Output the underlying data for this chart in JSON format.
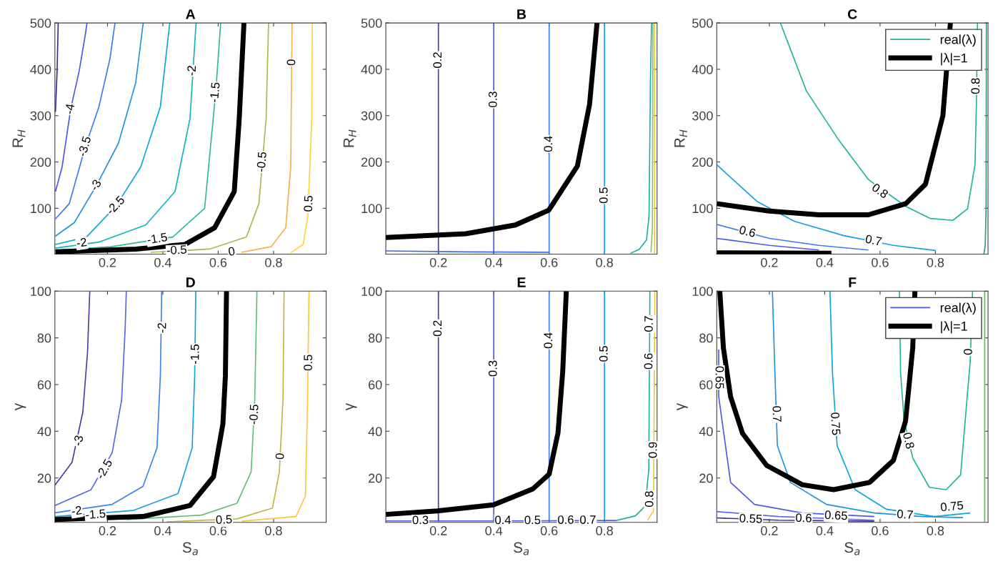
{
  "chart_data": [
    {
      "type": "line",
      "title": "A",
      "ylabel": "R$_{H}$",
      "xlim": [
        0.01,
        0.99
      ],
      "ylim": [
        1,
        500
      ],
      "xticks": [
        0.2,
        0.4,
        0.6,
        0.8
      ],
      "yticks": [
        100,
        200,
        300,
        400,
        500
      ],
      "tick_labels": "xy",
      "grid": false,
      "legend": false,
      "series": [
        {
          "color": "#3b2a98",
          "x": [
            0.012,
            0.018,
            0.022
          ],
          "values": [
            308,
            397,
            500
          ]
        },
        {
          "color": "#4c53e8",
          "x": [
            0.012,
            0.036,
            0.067,
            0.098,
            0.12,
            0.126
          ],
          "values": [
            136,
            189,
            314,
            397,
            475,
            500
          ]
        },
        {
          "color": "#3c7af0",
          "x": [
            0.012,
            0.062,
            0.12,
            0.169,
            0.209,
            0.227
          ],
          "values": [
            77,
            110,
            233,
            319,
            423,
            500
          ]
        },
        {
          "color": "#1e94e0",
          "x": [
            0.012,
            0.08,
            0.16,
            0.24,
            0.302,
            0.329
          ],
          "values": [
            40,
            69,
            149,
            241,
            371,
            500
          ]
        },
        {
          "color": "#0aa8d6",
          "x": [
            0.012,
            0.124,
            0.231,
            0.32,
            0.391,
            0.425
          ],
          "values": [
            22,
            38,
            105,
            189,
            319,
            500
          ]
        },
        {
          "color": "#10b4c0",
          "x": [
            0.012,
            0.169,
            0.338,
            0.444,
            0.498,
            0.52
          ],
          "values": [
            14,
            27,
            64,
            136,
            293,
            500
          ]
        },
        {
          "color": "#2fb89a",
          "x": [
            0.012,
            0.213,
            0.436,
            0.551,
            0.591,
            0.609
          ],
          "values": [
            9,
            17,
            38,
            100,
            350,
            500
          ]
        },
        {
          "color": "#a6b84e",
          "x": [
            0.356,
            0.569,
            0.702,
            0.747,
            0.773,
            0.782
          ],
          "values": [
            5,
            12,
            38,
            110,
            293,
            500
          ]
        },
        {
          "color": "#f5b04c",
          "x": [
            0.684,
            0.791,
            0.844,
            0.862,
            0.867
          ],
          "values": [
            5,
            17,
            58,
            189,
            500
          ]
        },
        {
          "color": "#fad43a",
          "x": [
            0.862,
            0.907,
            0.924,
            0.938,
            0.94
          ],
          "values": [
            4,
            22,
            84,
            293,
            500
          ]
        },
        {
          "color": "#000000",
          "x": [
            0.012,
            0.302,
            0.48,
            0.587,
            0.658,
            0.676,
            0.693
          ],
          "values": [
            6,
            12,
            22,
            58,
            136,
            293,
            500
          ]
        }
      ],
      "annotations": [
        {
          "text": "-4",
          "x": 0.067,
          "y": 314
        },
        {
          "text": "-3.5",
          "x": 0.12,
          "y": 233
        },
        {
          "text": "-3",
          "x": 0.16,
          "y": 149
        },
        {
          "text": "-2.5",
          "x": 0.231,
          "y": 105
        },
        {
          "text": "-2",
          "x": 0.507,
          "y": 397
        },
        {
          "text": "-1.5",
          "x": 0.591,
          "y": 350
        },
        {
          "text": "-0.5",
          "x": 0.76,
          "y": 200
        },
        {
          "text": "0",
          "x": 0.867,
          "y": 415
        },
        {
          "text": "0.5",
          "x": 0.929,
          "y": 110
        },
        {
          "text": "-2",
          "x": 0.107,
          "y": 24
        },
        {
          "text": "-1.5",
          "x": 0.38,
          "y": 33
        },
        {
          "text": "-0.5",
          "x": 0.45,
          "y": 8
        },
        {
          "text": "0",
          "x": 0.649,
          "y": 5
        }
      ]
    },
    {
      "type": "line",
      "title": "B",
      "ylabel": "R$_{H}$",
      "xlim": [
        0.01,
        0.99
      ],
      "ylim": [
        1,
        500
      ],
      "xticks": [
        0.2,
        0.4,
        0.6,
        0.8
      ],
      "yticks": [
        100,
        200,
        300,
        400,
        500
      ],
      "grid": false,
      "legend": false,
      "series": [
        {
          "color": "#4b3ca5",
          "x": [
            0.2,
            0.2
          ],
          "values": [
            1,
            500
          ]
        },
        {
          "color": "#4d58e8",
          "x": [
            0.4,
            0.4
          ],
          "values": [
            1,
            500
          ]
        },
        {
          "color": "#3a7cf0",
          "x": [
            0.6,
            0.6
          ],
          "values": [
            1,
            500
          ]
        },
        {
          "color": "#14a2e0",
          "x": [
            0.8,
            0.8
          ],
          "values": [
            1,
            500
          ]
        },
        {
          "color": "#3a6ae8",
          "x": [
            0.01,
            0.3,
            0.6
          ],
          "values": [
            8,
            6,
            5
          ]
        },
        {
          "color": "#1bb0a8",
          "x": [
            0.97,
            0.966,
            0.961,
            0.952,
            0.925,
            0.894
          ],
          "values": [
            500,
            378,
            85,
            32,
            11,
            3
          ]
        },
        {
          "color": "#86c46a",
          "x": [
            0.975,
            0.973,
            0.968
          ],
          "values": [
            500,
            58,
            5
          ]
        },
        {
          "color": "#f2c53a",
          "x": [
            0.981,
            0.981
          ],
          "values": [
            500,
            3
          ]
        },
        {
          "color": "#000000",
          "x": [
            0.01,
            0.299,
            0.478,
            0.599,
            0.702,
            0.746,
            0.773
          ],
          "values": [
            37,
            45,
            64,
            96,
            191,
            324,
            500
          ]
        }
      ],
      "annotations": [
        {
          "text": "0.2",
          "x": 0.2,
          "y": 420
        },
        {
          "text": "0.3",
          "x": 0.4,
          "y": 335
        },
        {
          "text": "0.4",
          "x": 0.6,
          "y": 239
        },
        {
          "text": "0.5",
          "x": 0.8,
          "y": 128
        }
      ]
    },
    {
      "type": "line",
      "title": "C",
      "ylabel": "R$_{H}$",
      "xlim": [
        0.01,
        0.99
      ],
      "ylim": [
        1,
        500
      ],
      "xticks": [
        0.2,
        0.4,
        0.6,
        0.8
      ],
      "yticks": [
        100,
        200,
        300,
        400,
        500
      ],
      "grid": false,
      "legend": "top right",
      "series": [
        {
          "name": "real(λ)",
          "color": "#1fb59a",
          "x": [
            0.24,
            0.334,
            0.451,
            0.558,
            0.693,
            0.782,
            0.863,
            0.916,
            0.943,
            0.948,
            0.952
          ],
          "values": [
            500,
            353,
            247,
            162,
            104,
            78,
            74,
            99,
            194,
            326,
            500
          ]
        },
        {
          "color": "#14a2e0",
          "x": [
            0.01,
            0.155,
            0.29,
            0.469,
            0.648,
            0.8
          ],
          "values": [
            194,
            115,
            72,
            41,
            20,
            9
          ]
        },
        {
          "color": "#3a7cf0",
          "x": [
            0.01,
            0.2,
            0.379,
            0.558
          ],
          "values": [
            65,
            35,
            20,
            10
          ]
        },
        {
          "color": "#4d58e8",
          "x": [
            0.01,
            0.2,
            0.379
          ],
          "values": [
            35,
            20,
            10
          ]
        },
        {
          "color": "#2a9d7f",
          "x": [
            0.975,
            0.98,
            0.983,
            0.984
          ],
          "values": [
            1,
            20,
            100,
            500
          ]
        },
        {
          "name": "|λ|=1",
          "color": "#000000",
          "x": [
            0.01,
            0.2,
            0.379,
            0.558,
            0.693,
            0.764,
            0.827,
            0.854
          ],
          "values": [
            110,
            94,
            86,
            86,
            110,
            152,
            300,
            500
          ]
        },
        {
          "color": "#000000",
          "x": [
            0.01,
            0.424
          ],
          "values": [
            4,
            3
          ]
        }
      ],
      "annotations": [
        {
          "text": "0.8",
          "x": 0.598,
          "y": 136
        },
        {
          "text": "0.8",
          "x": 0.948,
          "y": 364
        },
        {
          "text": "0.7",
          "x": 0.576,
          "y": 29
        },
        {
          "text": "0.6",
          "x": 0.12,
          "y": 48
        }
      ]
    },
    {
      "type": "line",
      "title": "D",
      "xlabel": "S$_{a}$",
      "ylabel": "γ",
      "xlim": [
        0.01,
        0.99
      ],
      "ylim": [
        1,
        100
      ],
      "xticks": [
        0.2,
        0.4,
        0.6,
        0.8
      ],
      "yticks": [
        20,
        40,
        60,
        80,
        100
      ],
      "grid": false,
      "legend": false,
      "series": [
        {
          "color": "#4b3ca5",
          "x": [
            0.01,
            0.072,
            0.111,
            0.128,
            0.136
          ],
          "values": [
            16.9,
            26.7,
            48.3,
            74,
            100
          ]
        },
        {
          "color": "#5566e0",
          "x": [
            0.01,
            0.14,
            0.217,
            0.251,
            0.264,
            0.268
          ],
          "values": [
            8.2,
            14.9,
            30.8,
            53.4,
            84.3,
            100
          ]
        },
        {
          "color": "#3a82f0",
          "x": [
            0.01,
            0.217,
            0.328,
            0.379,
            0.391,
            0.396
          ],
          "values": [
            5.1,
            8.7,
            16.4,
            32.9,
            63.7,
            100
          ]
        },
        {
          "color": "#14a2e0",
          "x": [
            0.01,
            0.294,
            0.455,
            0.506,
            0.515,
            0.519
          ],
          "values": [
            3.5,
            6.1,
            13.3,
            32.9,
            63.7,
            100
          ]
        },
        {
          "color": "#5ebf78",
          "x": [
            0.268,
            0.54,
            0.668,
            0.719,
            0.732,
            0.74
          ],
          "values": [
            2.2,
            4.1,
            9.2,
            22.6,
            53.4,
            100
          ]
        },
        {
          "color": "#c4b444",
          "x": [
            0.413,
            0.668,
            0.796,
            0.821,
            0.834,
            0.838
          ],
          "values": [
            1.2,
            2.5,
            7.1,
            22.6,
            53.4,
            100
          ]
        },
        {
          "color": "#fcc53c",
          "x": [
            0.685,
            0.881,
            0.915,
            0.923,
            0.928
          ],
          "values": [
            1.5,
            3.5,
            12.3,
            53.4,
            100
          ]
        },
        {
          "color": "#000000",
          "x": [
            0.01,
            0.328,
            0.498,
            0.583,
            0.617,
            0.626,
            0.63
          ],
          "values": [
            2.2,
            3.5,
            8.2,
            20.5,
            43.1,
            63.7,
            100
          ]
        }
      ],
      "annotations": [
        {
          "text": "-3",
          "x": 0.098,
          "y": 35.9
        },
        {
          "text": "-2.5",
          "x": 0.191,
          "y": 23.6
        },
        {
          "text": "-2",
          "x": 0.4,
          "y": 84.3
        },
        {
          "text": "-1.5",
          "x": 0.519,
          "y": 73
        },
        {
          "text": "-0.5",
          "x": 0.732,
          "y": 47.2
        },
        {
          "text": "0",
          "x": 0.826,
          "y": 29.3
        },
        {
          "text": "0.5",
          "x": 0.928,
          "y": 69.4
        },
        {
          "text": "-2",
          "x": 0.089,
          "y": 5.6
        },
        {
          "text": "-1.5",
          "x": 0.157,
          "y": 4.1
        },
        {
          "text": "0.5",
          "x": 0.621,
          "y": 1.8
        }
      ]
    },
    {
      "type": "line",
      "title": "E",
      "xlabel": "S$_{a}$",
      "ylabel": "γ",
      "xlim": [
        0.01,
        0.99
      ],
      "ylim": [
        1,
        100
      ],
      "xticks": [
        0.2,
        0.4,
        0.6,
        0.8
      ],
      "yticks": [
        20,
        40,
        60,
        80,
        100
      ],
      "grid": false,
      "legend": false,
      "series": [
        {
          "color": "#4b3ca5",
          "x": [
            0.2,
            0.2
          ],
          "values": [
            1.5,
            100
          ]
        },
        {
          "color": "#4d58e8",
          "x": [
            0.4,
            0.4
          ],
          "values": [
            1.5,
            100
          ]
        },
        {
          "color": "#3a7cf0",
          "x": [
            0.6,
            0.6
          ],
          "values": [
            1.5,
            100
          ]
        },
        {
          "color": "#14a2e0",
          "x": [
            0.8,
            0.8
          ],
          "values": [
            1.5,
            100
          ]
        },
        {
          "color": "#4d58e8",
          "x": [
            0.01,
            0.4,
            0.843
          ],
          "values": [
            1.6,
            1.6,
            1.8
          ]
        },
        {
          "color": "#1bb0a8",
          "x": [
            0.964,
            0.96,
            0.947,
            0.912,
            0.843
          ],
          "values": [
            100,
            23.6,
            8,
            3.8,
            1.8
          ]
        },
        {
          "color": "#f2c53a",
          "x": [
            0.982,
            0.977,
            0.955
          ],
          "values": [
            100,
            5.9,
            1.8
          ]
        },
        {
          "color": "#000000",
          "x": [
            0.01,
            0.196,
            0.399,
            0.541,
            0.6,
            0.632,
            0.649,
            0.662
          ],
          "values": [
            4.4,
            5.9,
            8.5,
            15.3,
            21.6,
            39.3,
            65.4,
            100
          ]
        }
      ],
      "annotations": [
        {
          "text": "0.2",
          "x": 0.2,
          "y": 84.1
        },
        {
          "text": "0.3",
          "x": 0.4,
          "y": 66.9
        },
        {
          "text": "0.4",
          "x": 0.6,
          "y": 78.9
        },
        {
          "text": "0.5",
          "x": 0.8,
          "y": 73.2
        },
        {
          "text": "0.6",
          "x": 0.962,
          "y": 70
        },
        {
          "text": "0.7",
          "x": 0.963,
          "y": 86
        },
        {
          "text": "0.8",
          "x": 0.965,
          "y": 11
        },
        {
          "text": "0.9",
          "x": 0.978,
          "y": 32
        },
        {
          "text": "0.3",
          "x": 0.135,
          "y": 1.6
        },
        {
          "text": "0.4",
          "x": 0.433,
          "y": 1.6
        },
        {
          "text": "0.5",
          "x": 0.54,
          "y": 1.6
        },
        {
          "text": "0.6",
          "x": 0.66,
          "y": 1.7
        },
        {
          "text": "0.7",
          "x": 0.74,
          "y": 1.7
        }
      ]
    },
    {
      "type": "line",
      "title": "F",
      "xlabel": "S$_{a}$",
      "ylabel": "γ",
      "xlim": [
        0.01,
        0.99
      ],
      "ylim": [
        1,
        100
      ],
      "xticks": [
        0.2,
        0.4,
        0.6,
        0.8
      ],
      "yticks": [
        20,
        40,
        60,
        80,
        100
      ],
      "grid": false,
      "legend": "top right",
      "series": [
        {
          "name": "real(λ)",
          "color": "#4d58e8",
          "x": [
            0.017,
            0.017,
            0.06,
            0.146,
            0.319,
            0.579
          ],
          "values": [
            75,
            54.8,
            18.1,
            8.7,
            5,
            3.5
          ]
        },
        {
          "color": "#3b2a98",
          "x": [
            0.01,
            0.233,
            0.579
          ],
          "values": [
            2.9,
            1.9,
            1.5
          ]
        },
        {
          "color": "#5a6ae8",
          "x": [
            0.01,
            0.233,
            0.579
          ],
          "values": [
            5.6,
            3.5,
            1.9
          ]
        },
        {
          "color": "#1e94e0",
          "x": [
            0.211,
            0.22,
            0.229,
            0.276,
            0.406,
            0.579,
            0.752,
            0.9
          ],
          "values": [
            100,
            65.2,
            33.8,
            18.1,
            8.7,
            5,
            3.5,
            3
          ]
        },
        {
          "color": "#0aa8d6",
          "x": [
            0.419,
            0.428,
            0.445,
            0.51,
            0.623,
            0.796,
            0.926
          ],
          "values": [
            100,
            65.2,
            33.8,
            15,
            6.6,
            3.5,
            5
          ]
        },
        {
          "color": "#1fb59a",
          "x": [
            0.67,
            0.674,
            0.687,
            0.718,
            0.778,
            0.839,
            0.891,
            0.926,
            0.934
          ],
          "values": [
            100,
            65.2,
            44.3,
            28.6,
            16,
            15,
            21.3,
            70.5,
            100
          ]
        },
        {
          "color": "#5fbf5a",
          "x": [
            0.978,
            0.978
          ],
          "values": [
            1,
            100
          ]
        },
        {
          "name": "|λ|=1",
          "color": "#000000",
          "x": [
            0.021,
            0.034,
            0.06,
            0.103,
            0.19,
            0.319,
            0.432,
            0.562,
            0.648,
            0.692,
            0.718,
            0.726
          ],
          "values": [
            100,
            75.7,
            54.8,
            39.1,
            25.4,
            17.1,
            15,
            18.1,
            27.5,
            44.3,
            75.7,
            100
          ]
        }
      ],
      "annotations": [
        {
          "text": "0.65",
          "x": 0.017,
          "y": 63
        },
        {
          "text": "0.7",
          "x": 0.224,
          "y": 47.4
        },
        {
          "text": "0.75",
          "x": 0.436,
          "y": 43.2
        },
        {
          "text": "0.8",
          "x": 0.7,
          "y": 35.9
        },
        {
          "text": "0",
          "x": 0.921,
          "y": 74
        },
        {
          "text": "0.55",
          "x": 0.133,
          "y": 2.2
        },
        {
          "text": "0.6",
          "x": 0.324,
          "y": 2.5
        },
        {
          "text": "0.65",
          "x": 0.441,
          "y": 3.6
        },
        {
          "text": "0.7",
          "x": 0.69,
          "y": 4
        },
        {
          "text": "0.75",
          "x": 0.86,
          "y": 7.5
        }
      ]
    }
  ]
}
